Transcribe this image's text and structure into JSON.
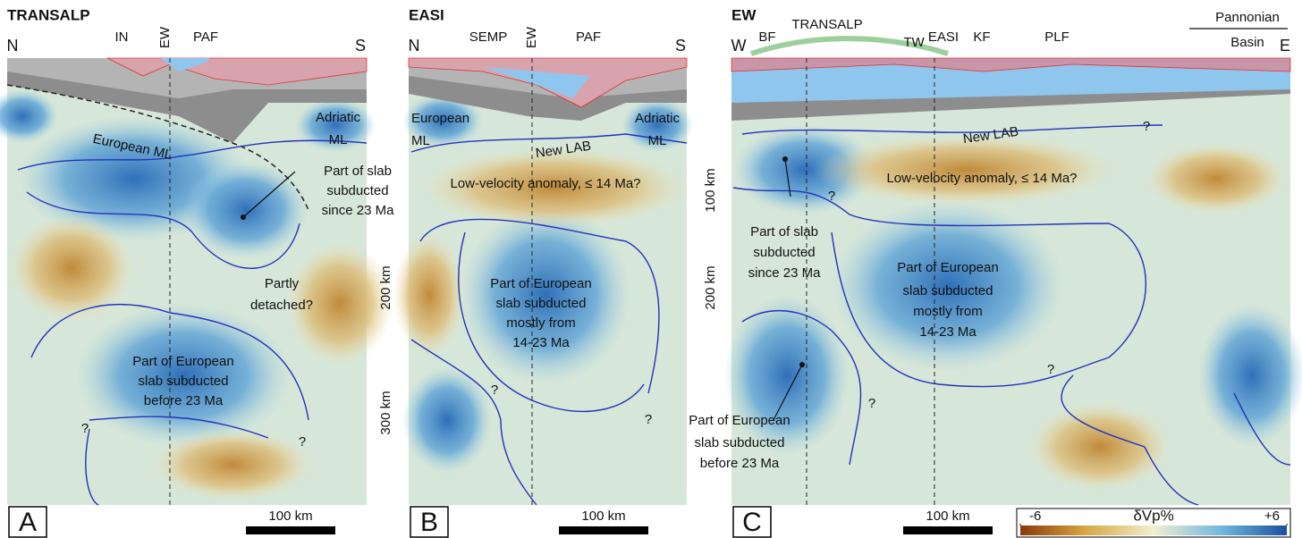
{
  "panels": [
    {
      "letter": "A",
      "title": "TRANSALP",
      "ends": [
        "N",
        "S"
      ],
      "top_labels": [
        "IN",
        "EW",
        "PAF"
      ],
      "annotations": [
        [
          "European ML"
        ],
        [
          "Adriatic",
          "ML"
        ],
        [
          "Part of slab",
          "subducted",
          "since 23 Ma"
        ],
        [
          "Partly",
          "detached?"
        ],
        [
          "Part of European",
          "slab subducted",
          "before 23 Ma"
        ],
        [
          "?"
        ],
        [
          "?"
        ]
      ],
      "scale_bar": "100 km"
    },
    {
      "letter": "B",
      "title": "EASI",
      "ends": [
        "N",
        "S"
      ],
      "top_labels": [
        "SEMP",
        "EW",
        "PAF"
      ],
      "annotations": [
        [
          "European",
          "ML"
        ],
        [
          "Adriatic",
          "ML"
        ],
        [
          "New LAB"
        ],
        [
          "Low-velocity anomaly, ≤ 14 Ma?"
        ],
        [
          "Part of European",
          "slab subducted",
          "mostly from",
          "14-23 Ma"
        ],
        [
          "?"
        ],
        [
          "?"
        ]
      ],
      "scale_bar": "100 km"
    },
    {
      "letter": "C",
      "title": "EW",
      "ends": [
        "W",
        "E"
      ],
      "top_labels": [
        "BF",
        "TRANSALP",
        "TW",
        "EASI",
        "KF",
        "PLF"
      ],
      "annotations": [
        [
          "Pannonian",
          "Basin"
        ],
        [
          "New LAB"
        ],
        [
          "?"
        ],
        [
          "Low-velocity anomaly, ≤ 14 Ma?"
        ],
        [
          "?"
        ],
        [
          "Part of slab",
          "subducted",
          "since 23 Ma"
        ],
        [
          "Part of European",
          "slab subducted",
          "mostly from",
          "14-23 Ma"
        ],
        [
          "?"
        ],
        [
          "?"
        ],
        [
          "Part of European",
          "slab subducted",
          "before 23 Ma"
        ]
      ],
      "scale_bar": "100 km"
    }
  ],
  "depth_labels_ab": [
    "200 km",
    "300 km"
  ],
  "depth_labels_bc": [
    "100 km",
    "200 km"
  ],
  "colorbar": {
    "label": "δVp%",
    "ticks": [
      -6,
      {
        "value": 6,
        "label": "+6"
      }
    ]
  }
}
